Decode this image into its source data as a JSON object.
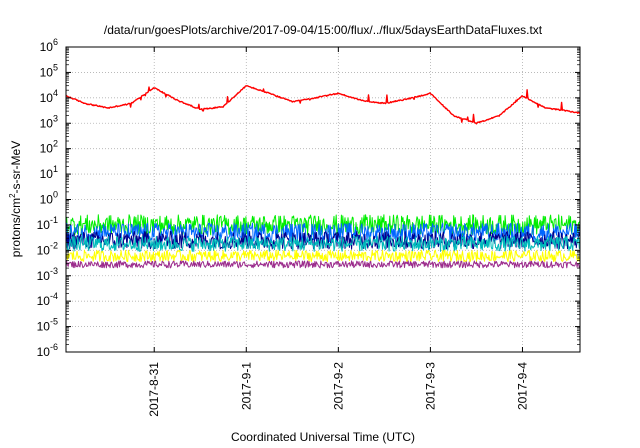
{
  "chart_data": {
    "type": "line",
    "title": "/data/run/goesPlots/archive/2017-09-04/15:00/flux/../flux/5daysEarthDataFluxes.txt",
    "xlabel": "Coordinated Universal Time (UTC)",
    "ylabel_main": "protons/cm",
    "ylabel_sup": "2",
    "ylabel_rest": "-s-sr-MeV",
    "y_scale": "log",
    "ylim_exp": [
      -6,
      6
    ],
    "y_ticks": [
      {
        "base": "10",
        "exp": "-6",
        "value": -6
      },
      {
        "base": "10",
        "exp": "-5",
        "value": -5
      },
      {
        "base": "10",
        "exp": "-4",
        "value": -4
      },
      {
        "base": "10",
        "exp": "-3",
        "value": -3
      },
      {
        "base": "10",
        "exp": "-2",
        "value": -2
      },
      {
        "base": "10",
        "exp": "-1",
        "value": -1
      },
      {
        "base": "10",
        "exp": "0",
        "value": 0
      },
      {
        "base": "10",
        "exp": "1",
        "value": 1
      },
      {
        "base": "10",
        "exp": "2",
        "value": 2
      },
      {
        "base": "10",
        "exp": "3",
        "value": 3
      },
      {
        "base": "10",
        "exp": "4",
        "value": 4
      },
      {
        "base": "10",
        "exp": "5",
        "value": 5
      },
      {
        "base": "10",
        "exp": "6",
        "value": 6
      }
    ],
    "xlim": [
      "2017-08-30 01:00",
      "2017-09-04 15:00"
    ],
    "x_ticks": [
      "2017-8-31",
      "2017-9-1",
      "2017-9-2",
      "2017-9-3",
      "2017-9-4"
    ],
    "grid": true,
    "series": [
      {
        "color": "#ff0000",
        "x": [
          "2017-08-30 01:00",
          "2017-08-30 06:00",
          "2017-08-30 12:00",
          "2017-08-30 18:00",
          "2017-08-31 00:00",
          "2017-08-31 06:00",
          "2017-08-31 12:00",
          "2017-08-31 18:00",
          "2017-09-01 00:00",
          "2017-09-01 06:00",
          "2017-09-01 12:00",
          "2017-09-01 18:00",
          "2017-09-02 00:00",
          "2017-09-02 06:00",
          "2017-09-02 12:00",
          "2017-09-02 18:00",
          "2017-09-03 00:00",
          "2017-09-03 06:00",
          "2017-09-03 12:00",
          "2017-09-03 18:00",
          "2017-09-04 00:00",
          "2017-09-04 06:00",
          "2017-09-04 12:00",
          "2017-09-04 15:00"
        ],
        "values": [
          12000,
          6000,
          4000,
          6000,
          25000,
          8000,
          3500,
          4500,
          30000,
          15000,
          7000,
          10000,
          15000,
          8000,
          6000,
          9000,
          15000,
          2000,
          1000,
          2000,
          12000,
          4000,
          3000,
          2500
        ]
      },
      {
        "color": "#00ee00",
        "x": [
          "2017-08-30 01:00",
          "2017-09-04 15:00"
        ],
        "values": [
          0.1,
          0.1
        ]
      },
      {
        "color": "#0066ff",
        "x": [
          "2017-08-30 01:00",
          "2017-09-04 15:00"
        ],
        "values": [
          0.05,
          0.05
        ]
      },
      {
        "color": "#00008b",
        "x": [
          "2017-08-30 01:00",
          "2017-09-04 15:00"
        ],
        "values": [
          0.025,
          0.025
        ]
      },
      {
        "color": "#00bbbb",
        "x": [
          "2017-08-30 01:00",
          "2017-09-04 15:00"
        ],
        "values": [
          0.018,
          0.018
        ]
      },
      {
        "color": "#ffff00",
        "x": [
          "2017-08-30 01:00",
          "2017-09-04 15:00"
        ],
        "values": [
          0.006,
          0.006
        ]
      },
      {
        "color": "#9b2c8c",
        "x": [
          "2017-08-30 01:00",
          "2017-09-04 15:00"
        ],
        "values": [
          0.0028,
          0.0028
        ]
      }
    ]
  }
}
